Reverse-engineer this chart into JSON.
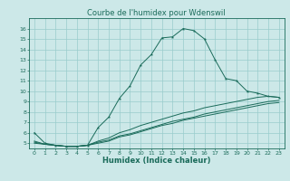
{
  "title": "Courbe de l'humidex pour Wdenswil",
  "xlabel": "Humidex (Indice chaleur)",
  "ylabel": "",
  "xlim": [
    -0.5,
    23.5
  ],
  "ylim": [
    4.5,
    17
  ],
  "yticks": [
    5,
    6,
    7,
    8,
    9,
    10,
    11,
    12,
    13,
    14,
    15,
    16
  ],
  "xticks": [
    0,
    1,
    2,
    3,
    4,
    5,
    6,
    7,
    8,
    9,
    10,
    11,
    12,
    13,
    14,
    15,
    16,
    17,
    18,
    19,
    20,
    21,
    22,
    23
  ],
  "background_color": "#cce8e8",
  "line_color": "#1a6b5a",
  "grid_color": "#99cccc",
  "curve1_x": [
    0,
    1,
    2,
    3,
    4,
    5,
    6,
    7,
    8,
    9,
    10,
    11,
    12,
    13,
    14,
    15,
    16,
    17,
    18,
    19,
    20,
    21,
    22,
    23
  ],
  "curve1_y": [
    6.0,
    5.0,
    4.8,
    4.7,
    4.7,
    4.8,
    6.5,
    7.5,
    9.3,
    10.5,
    12.5,
    13.5,
    15.1,
    15.2,
    16.0,
    15.8,
    15.0,
    13.0,
    11.2,
    11.0,
    10.0,
    9.8,
    9.5,
    9.4
  ],
  "curve2_x": [
    0,
    1,
    2,
    3,
    4,
    5,
    6,
    7,
    8,
    9,
    10,
    11,
    12,
    13,
    14,
    15,
    16,
    17,
    18,
    19,
    20,
    21,
    22,
    23
  ],
  "curve2_y": [
    5.2,
    4.9,
    4.8,
    4.7,
    4.7,
    4.8,
    5.2,
    5.5,
    6.0,
    6.3,
    6.7,
    7.0,
    7.3,
    7.6,
    7.9,
    8.1,
    8.4,
    8.6,
    8.8,
    9.0,
    9.2,
    9.4,
    9.5,
    9.4
  ],
  "curve3_x": [
    0,
    1,
    2,
    3,
    4,
    5,
    6,
    7,
    8,
    9,
    10,
    11,
    12,
    13,
    14,
    15,
    16,
    17,
    18,
    19,
    20,
    21,
    22,
    23
  ],
  "curve3_y": [
    5.0,
    4.9,
    4.8,
    4.7,
    4.7,
    4.8,
    5.1,
    5.3,
    5.7,
    5.9,
    6.2,
    6.5,
    6.8,
    7.1,
    7.3,
    7.5,
    7.8,
    8.0,
    8.2,
    8.4,
    8.6,
    8.8,
    9.0,
    9.1
  ],
  "curve4_x": [
    0,
    1,
    2,
    3,
    4,
    5,
    6,
    7,
    8,
    9,
    10,
    11,
    12,
    13,
    14,
    15,
    16,
    17,
    18,
    19,
    20,
    21,
    22,
    23
  ],
  "curve4_y": [
    5.1,
    4.9,
    4.8,
    4.7,
    4.7,
    4.8,
    5.0,
    5.2,
    5.6,
    5.8,
    6.1,
    6.4,
    6.7,
    6.9,
    7.2,
    7.4,
    7.6,
    7.8,
    8.0,
    8.2,
    8.4,
    8.6,
    8.8,
    8.9
  ],
  "title_fontsize": 6,
  "xlabel_fontsize": 6,
  "tick_fontsize": 4.5
}
